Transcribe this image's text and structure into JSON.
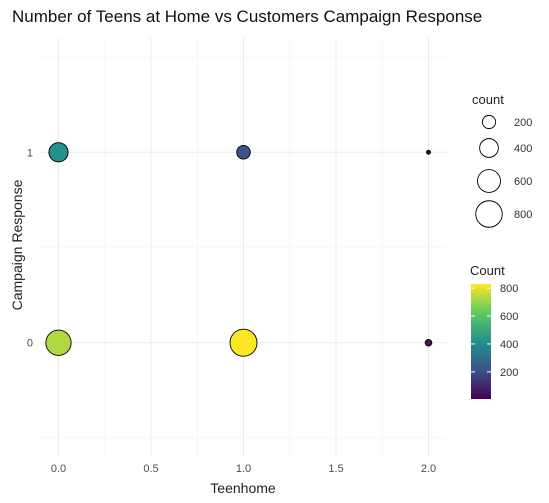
{
  "chart_data": {
    "type": "scatter",
    "title": "Number of Teens at Home vs Customers Campaign Response",
    "xlabel": "Teenhome",
    "ylabel": "Campaign Response",
    "x_ticks": [
      "0.0",
      "0.5",
      "1.0",
      "1.5",
      "2.0"
    ],
    "y_ticks": [
      "0",
      "1"
    ],
    "xlim": [
      -0.1,
      2.1
    ],
    "ylim": [
      -0.6,
      1.6
    ],
    "grid": true,
    "points": [
      {
        "x": 0,
        "y": 0,
        "count": 730
      },
      {
        "x": 0,
        "y": 1,
        "count": 420
      },
      {
        "x": 1,
        "y": 0,
        "count": 830
      },
      {
        "x": 1,
        "y": 1,
        "count": 210
      },
      {
        "x": 2,
        "y": 0,
        "count": 50
      },
      {
        "x": 2,
        "y": 1,
        "count": 5
      }
    ],
    "size_legend": {
      "title": "count",
      "values": [
        "200",
        "400",
        "600",
        "800"
      ]
    },
    "color_legend": {
      "title": "Count",
      "values": [
        "200",
        "400",
        "600",
        "800"
      ],
      "colormap": "viridis",
      "range": [
        5,
        830
      ]
    }
  }
}
